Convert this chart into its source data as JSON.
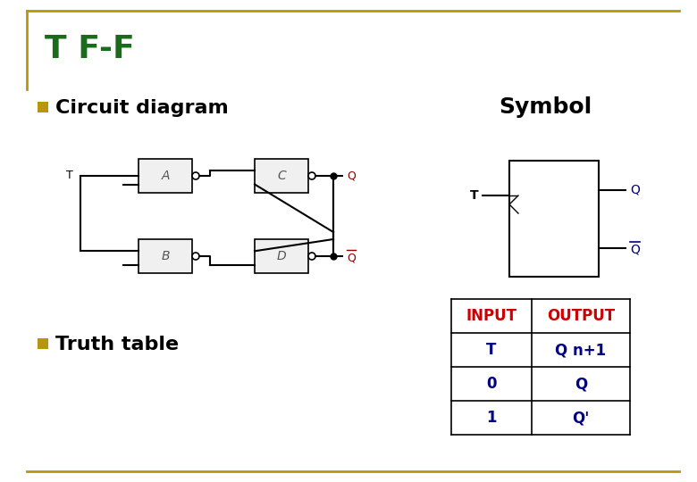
{
  "title": "T F-F",
  "title_color": "#1a6b1a",
  "bg_color": "#ffffff",
  "border_color": "#b8960c",
  "bullet_color": "#b8960c",
  "section1": "Circuit diagram",
  "section2": "Truth table",
  "symbol_label": "Symbol",
  "table_headers": [
    "INPUT",
    "OUTPUT"
  ],
  "table_col1": [
    "T",
    "0",
    "1"
  ],
  "table_col2": [
    "Q n+1",
    "Q",
    "Q'"
  ],
  "table_header_color": "#cc0000",
  "table_data_color": "#000080",
  "line_color": "#000000",
  "gate_fill": "#e8e8e8",
  "gate_stroke": "#555555"
}
